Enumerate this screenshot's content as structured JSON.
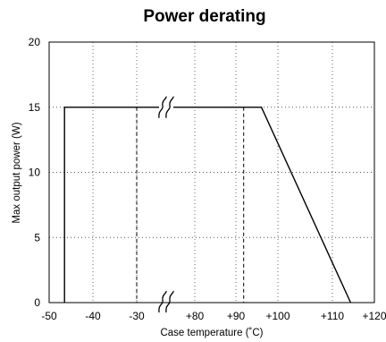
{
  "chart_data": {
    "type": "line",
    "title": "Power derating",
    "xlabel": "Case temperature (˚C)",
    "ylabel": "Max output power (W)",
    "x_tick_labels": [
      "-50",
      "-40",
      "-30",
      "+80",
      "+90",
      "+100",
      "+110",
      "+120"
    ],
    "y_ticks": [
      0,
      5,
      10,
      15,
      20
    ],
    "ylim": [
      0,
      20
    ],
    "grid": "dotted",
    "axis_break": "broken x axis between -30 and +80",
    "series": [
      {
        "points": [
          {
            "x": -46.5,
            "y": 0
          },
          {
            "x": -46.5,
            "y": 15
          },
          {
            "x": 101,
            "y": 15
          },
          {
            "x": 116,
            "y": 0
          }
        ]
      }
    ],
    "reference_lines": [
      {
        "x": -30,
        "style": "dashed"
      },
      {
        "x": 98,
        "style": "dashed"
      }
    ]
  }
}
